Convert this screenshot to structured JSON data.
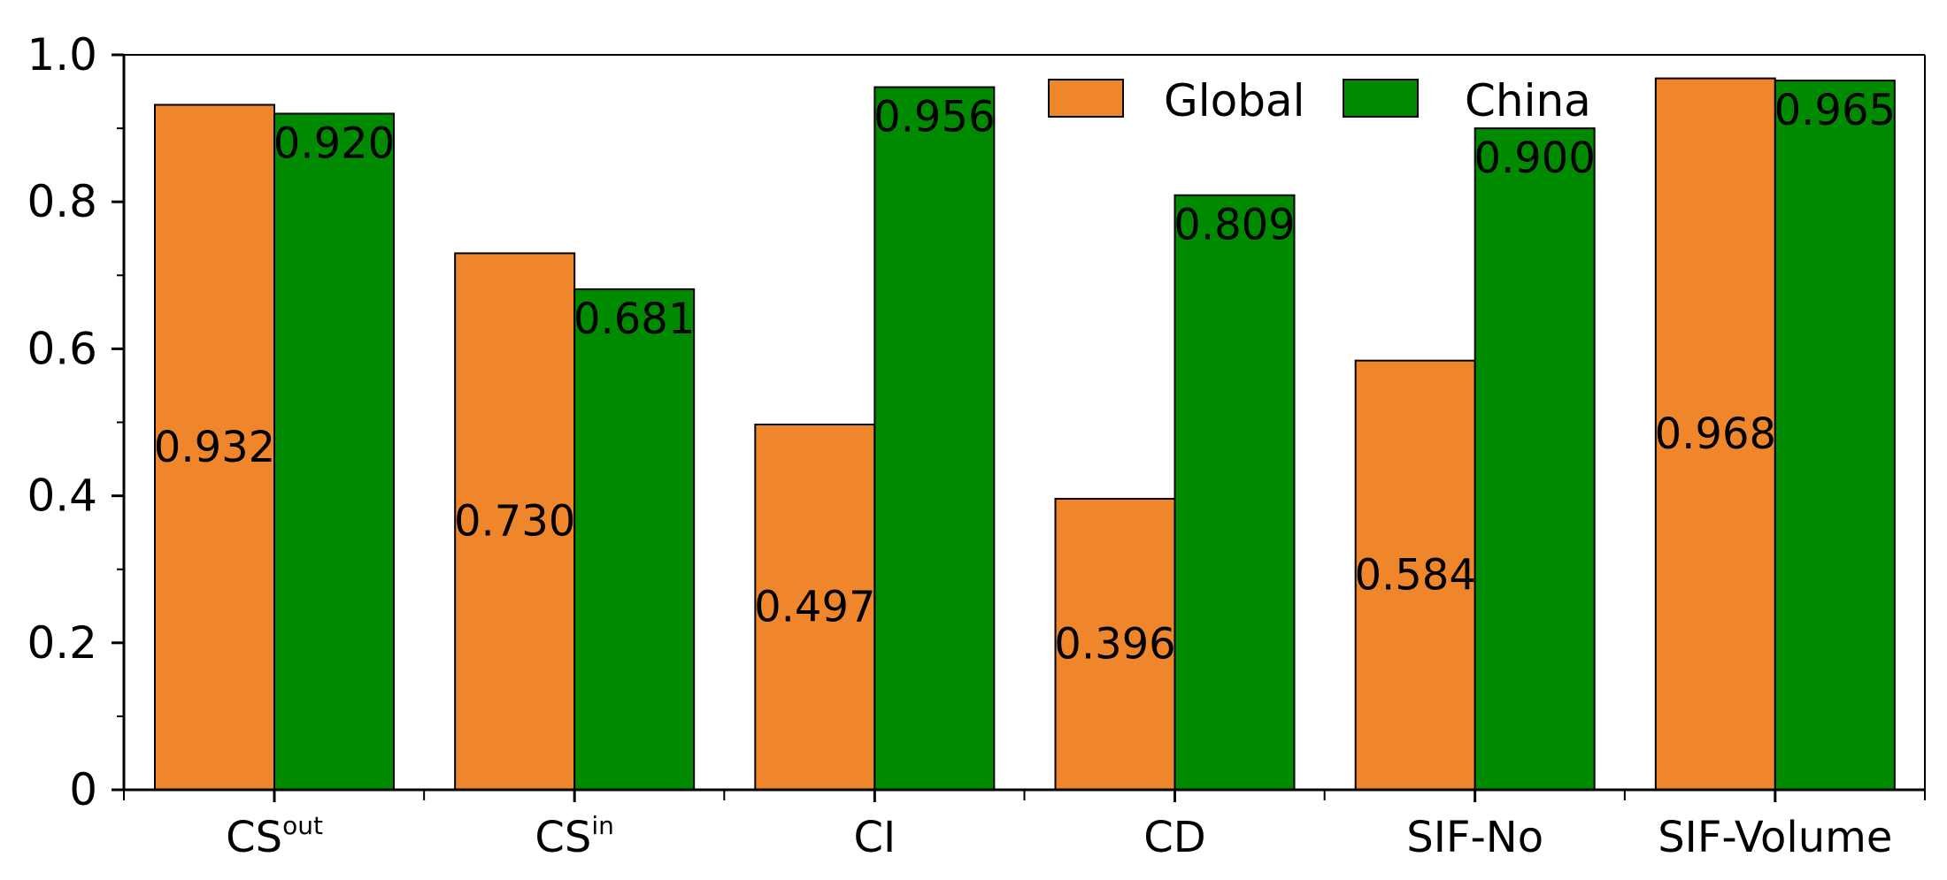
{
  "chart_data": {
    "type": "bar",
    "categories": [
      {
        "main": "CS",
        "sup": "out"
      },
      {
        "main": "CS",
        "sup": "in"
      },
      {
        "main": "CI",
        "sup": ""
      },
      {
        "main": "CD",
        "sup": ""
      },
      {
        "main": "SIF-No",
        "sup": ""
      },
      {
        "main": "SIF-Volume",
        "sup": ""
      }
    ],
    "series": [
      {
        "name": "Global",
        "color": "#f0862b",
        "values": [
          0.932,
          0.73,
          0.497,
          0.396,
          0.584,
          0.968
        ],
        "labels": [
          "0.932",
          "0.730",
          "0.497",
          "0.396",
          "0.584",
          "0.968"
        ]
      },
      {
        "name": "China",
        "color": "#008a00",
        "values": [
          0.92,
          0.681,
          0.956,
          0.809,
          0.9,
          0.965
        ],
        "labels": [
          "0.920",
          "0.681",
          "0.956",
          "0.809",
          "0.900",
          "0.965"
        ]
      }
    ],
    "ylim": [
      0,
      1.0
    ],
    "yticks": [
      0,
      0.2,
      0.4,
      0.6,
      0.8,
      1.0
    ],
    "ytick_labels": [
      "0",
      "0.2",
      "0.4",
      "0.6",
      "0.8",
      "1.0"
    ],
    "title": "",
    "xlabel": "",
    "ylabel": "",
    "grid": false,
    "legend_position": "top-center"
  }
}
